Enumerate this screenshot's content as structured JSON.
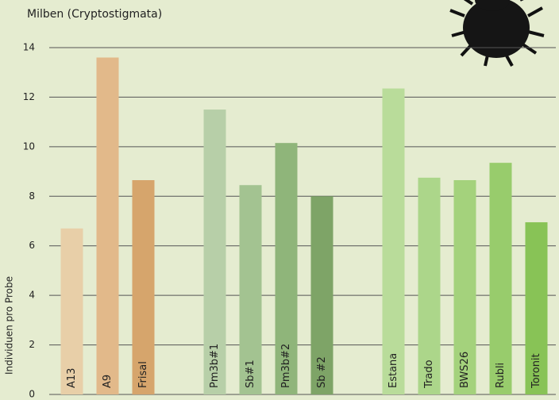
{
  "chart_data": {
    "type": "bar",
    "title": "Milben (Cryptostigmata)",
    "y_label": "Individuen pro Probe",
    "categories": [
      "A13",
      "A9",
      "Frisal",
      null,
      "Pm3b#1",
      "Sb#1",
      "Pm3b#2",
      "Sb #2",
      null,
      "Estana",
      "Trado",
      "BWS26",
      "Rubli",
      "Toronit"
    ],
    "values": [
      6.7,
      13.6,
      8.65,
      null,
      11.5,
      8.45,
      10.15,
      8.0,
      null,
      12.35,
      8.75,
      8.65,
      9.35,
      6.95
    ],
    "colors": [
      "#e8cfa8",
      "#e2b98a",
      "#d6a56c",
      null,
      "#b7cfa8",
      "#a3c391",
      "#8fb57a",
      "#7ea467",
      null,
      "#b9dc9a",
      "#acd68a",
      "#a4d27c",
      "#98cc6c",
      "#88c356"
    ],
    "ylim": [
      0,
      14
    ],
    "yticks": [
      0,
      2,
      4,
      6,
      8,
      10,
      12,
      14
    ],
    "grid": true
  }
}
